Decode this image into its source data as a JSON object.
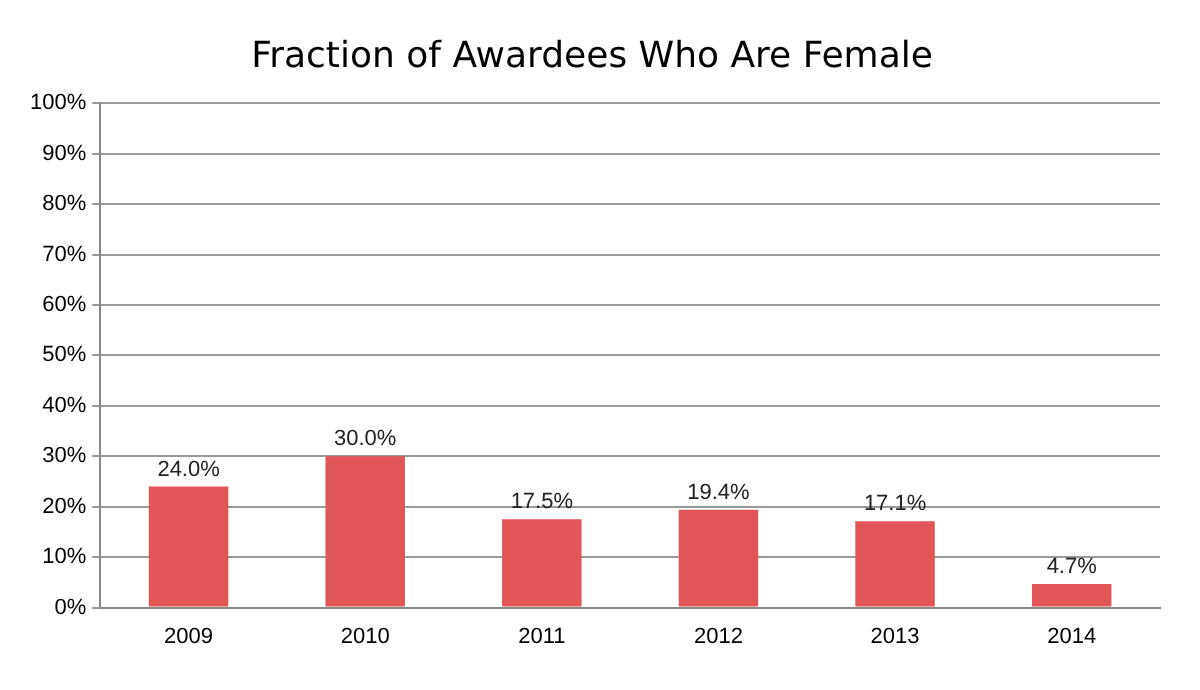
{
  "chart_data": {
    "type": "bar",
    "title": "Fraction of Awardees Who Are Female",
    "categories": [
      "2009",
      "2010",
      "2011",
      "2012",
      "2013",
      "2014"
    ],
    "values": [
      24.0,
      30.0,
      17.5,
      19.4,
      17.1,
      4.7
    ],
    "value_labels": [
      "24.0%",
      "30.0%",
      "17.5%",
      "19.4%",
      "17.1%",
      "4.7%"
    ],
    "color": "#e05556",
    "ylim": [
      0,
      100
    ],
    "yticks": [
      {
        "value": 0,
        "label": "0%"
      },
      {
        "value": 10,
        "label": "10%"
      },
      {
        "value": 20,
        "label": "20%"
      },
      {
        "value": 30,
        "label": "30%"
      },
      {
        "value": 40,
        "label": "40%"
      },
      {
        "value": 50,
        "label": "50%"
      },
      {
        "value": 60,
        "label": "60%"
      },
      {
        "value": 70,
        "label": "70%"
      },
      {
        "value": 80,
        "label": "80%"
      },
      {
        "value": 90,
        "label": "90%"
      },
      {
        "value": 100,
        "label": "100%"
      }
    ],
    "grid": "y",
    "legend": false
  }
}
